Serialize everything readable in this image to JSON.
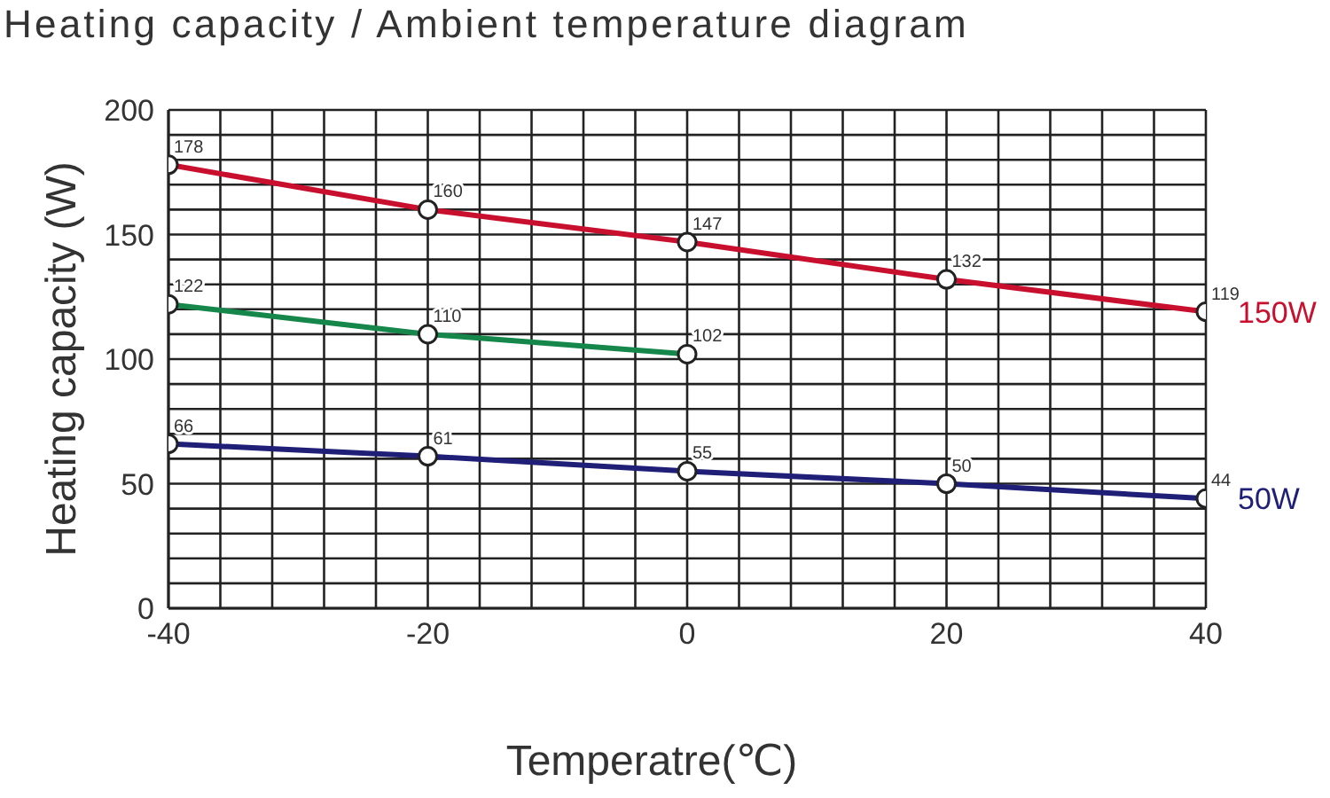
{
  "chart_data": {
    "type": "line",
    "title": "Heating capacity / Ambient temperature diagram",
    "xlabel": "Temperatre(℃)",
    "ylabel": "Heating capacity (W)",
    "x": [
      -40,
      -20,
      0,
      20,
      40
    ],
    "series": [
      {
        "name": "150W",
        "color": "#c8102e",
        "values": [
          178,
          160,
          147,
          132,
          119
        ]
      },
      {
        "color": "#15874a",
        "values": [
          122,
          110,
          102,
          null,
          null
        ]
      },
      {
        "name": "50W",
        "color": "#1f1f78",
        "values": [
          66,
          61,
          55,
          50,
          44
        ]
      }
    ],
    "xlim": [
      -40,
      40
    ],
    "xticks": [
      -40,
      {
        "value": -36,
        "label": null
      },
      {
        "value": -32,
        "label": null
      },
      {
        "value": -28,
        "label": null
      },
      {
        "value": -24,
        "label": null
      },
      -20,
      {
        "value": -16,
        "label": null
      },
      {
        "value": -12,
        "label": null
      },
      {
        "value": -8,
        "label": null
      },
      {
        "value": -4,
        "label": null
      },
      0,
      {
        "value": 4,
        "label": null
      },
      {
        "value": 8,
        "label": null
      },
      {
        "value": 12,
        "label": null
      },
      {
        "value": 16,
        "label": null
      },
      20,
      {
        "value": 24,
        "label": null
      },
      {
        "value": 28,
        "label": null
      },
      {
        "value": 32,
        "label": null
      },
      {
        "value": 36,
        "label": null
      },
      40
    ],
    "ylim": [
      0,
      200
    ],
    "yticks": [
      0,
      {
        "value": 10,
        "label": null
      },
      {
        "value": 20,
        "label": null
      },
      {
        "value": 30,
        "label": null
      },
      {
        "value": 40,
        "label": null
      },
      50,
      {
        "value": 60,
        "label": null
      },
      {
        "value": 70,
        "label": null
      },
      {
        "value": 80,
        "label": null
      },
      {
        "value": 90,
        "label": null
      },
      100,
      {
        "value": 110,
        "label": null
      },
      {
        "value": 120,
        "label": null
      },
      {
        "value": 130,
        "label": null
      },
      {
        "value": 140,
        "label": null
      },
      150,
      {
        "value": 160,
        "label": null
      },
      {
        "value": 170,
        "label": null
      },
      {
        "value": 180,
        "label": null
      },
      {
        "value": 190,
        "label": null
      },
      200
    ],
    "grid": true,
    "marker": "circle",
    "line_style": "solid",
    "data_labels": true
  }
}
